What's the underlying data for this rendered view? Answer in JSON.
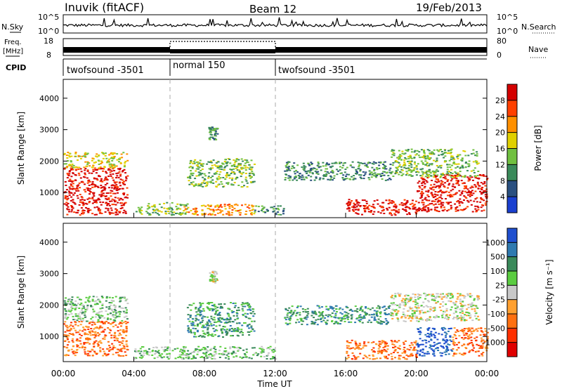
{
  "header": {
    "title": "Inuvik (fitACF)",
    "beam": "Beam 12",
    "date": "19/Feb/2013"
  },
  "nsky_panel": {
    "left_label": "N.Sky",
    "right_label": "N.Search",
    "ticks_left": [
      "10^5",
      "10^0"
    ],
    "ticks_right": [
      "10^5",
      "10^0"
    ]
  },
  "freq_panel": {
    "left_label_line1": "Freq.",
    "left_label_line2": "[MHz]",
    "right_label": "Nave",
    "ticks_left": [
      "18",
      "8"
    ],
    "ticks_right": [
      "80",
      "0"
    ]
  },
  "cpid_panel": {
    "label": "CPID",
    "segments": [
      {
        "name": "twofsound -3501",
        "start_h": 0,
        "end_h": 6
      },
      {
        "name": "normal 150",
        "start_h": 6,
        "end_h": 12
      },
      {
        "name": "twofsound -3501",
        "start_h": 12,
        "end_h": 24
      }
    ]
  },
  "chart_data": [
    {
      "type": "heatmap",
      "panel": "power",
      "xlabel": "Time UT",
      "ylabel": "Slant Range [km]",
      "xlim": [
        0,
        24
      ],
      "ylim": [
        200,
        4600
      ],
      "yticks": [
        "1000",
        "2000",
        "3000",
        "4000"
      ],
      "colorbar": {
        "label": "Power [dB]",
        "ticks": [
          "28",
          "24",
          "20",
          "16",
          "12",
          "8",
          "4"
        ],
        "colors": [
          "#d40000",
          "#ff4000",
          "#ff9000",
          "#e0d000",
          "#70c040",
          "#3a8a5a",
          "#2a5080",
          "#1a40d0"
        ]
      },
      "regions": [
        {
          "t0": 0.0,
          "t1": 3.6,
          "r0": 300,
          "r1": 1800,
          "level": 0
        },
        {
          "t0": 0.0,
          "t1": 3.6,
          "r0": 1800,
          "r1": 2300,
          "level": 3
        },
        {
          "t0": 4.0,
          "t1": 7.0,
          "r0": 300,
          "r1": 700,
          "level": 4
        },
        {
          "t0": 6.8,
          "t1": 10.8,
          "r0": 300,
          "r1": 650,
          "level": 2
        },
        {
          "t0": 7.0,
          "t1": 10.8,
          "r0": 1200,
          "r1": 2100,
          "level": 4
        },
        {
          "t0": 8.2,
          "t1": 8.7,
          "r0": 2700,
          "r1": 3100,
          "level": 5
        },
        {
          "t0": 10.8,
          "t1": 12.5,
          "r0": 300,
          "r1": 600,
          "level": 5
        },
        {
          "t0": 12.5,
          "t1": 18.5,
          "r0": 1400,
          "r1": 2000,
          "level": 5
        },
        {
          "t0": 16.0,
          "t1": 20.0,
          "r0": 300,
          "r1": 800,
          "level": 0
        },
        {
          "t0": 20.0,
          "t1": 24.0,
          "r0": 400,
          "r1": 1600,
          "level": 0
        },
        {
          "t0": 18.5,
          "t1": 23.5,
          "r0": 1500,
          "r1": 2400,
          "level": 4
        }
      ]
    },
    {
      "type": "heatmap",
      "panel": "velocity",
      "xlabel": "Time UT",
      "ylabel": "Slant Range [km]",
      "xlim": [
        0,
        24
      ],
      "ylim": [
        200,
        4600
      ],
      "yticks": [
        "1000",
        "2000",
        "3000",
        "4000"
      ],
      "xticks": [
        "00:00",
        "04:00",
        "08:00",
        "12:00",
        "16:00",
        "20:00",
        "00:00"
      ],
      "colorbar": {
        "label": "Velocity [m s⁻¹]",
        "ticks": [
          "1000",
          "500",
          "100",
          "25",
          "-25",
          "-100",
          "-500",
          "-1000"
        ],
        "colors": [
          "#1f4fcf",
          "#2f7ab0",
          "#3a8a5a",
          "#5acc40",
          "#c8c8c8",
          "#ffa030",
          "#ff7010",
          "#ff3000",
          "#e00000"
        ]
      },
      "regions": [
        {
          "t0": 0.0,
          "t1": 3.6,
          "r0": 400,
          "r1": 1500,
          "level": 6
        },
        {
          "t0": 0.0,
          "t1": 3.6,
          "r0": 1500,
          "r1": 2300,
          "level": 3
        },
        {
          "t0": 4.0,
          "t1": 7.0,
          "r0": 300,
          "r1": 700,
          "level": 3
        },
        {
          "t0": 7.0,
          "t1": 10.8,
          "r0": 1000,
          "r1": 2100,
          "level": 2
        },
        {
          "t0": 6.8,
          "t1": 12.0,
          "r0": 300,
          "r1": 700,
          "level": 3
        },
        {
          "t0": 8.2,
          "t1": 8.7,
          "r0": 2700,
          "r1": 3100,
          "level": 4
        },
        {
          "t0": 12.5,
          "t1": 18.5,
          "r0": 1400,
          "r1": 2000,
          "level": 2
        },
        {
          "t0": 16.0,
          "t1": 20.0,
          "r0": 300,
          "r1": 900,
          "level": 6
        },
        {
          "t0": 20.0,
          "t1": 22.0,
          "r0": 400,
          "r1": 1300,
          "level": 0
        },
        {
          "t0": 22.0,
          "t1": 24.0,
          "r0": 400,
          "r1": 1300,
          "level": 6
        },
        {
          "t0": 18.5,
          "t1": 23.5,
          "r0": 1500,
          "r1": 2400,
          "level": 4
        }
      ]
    }
  ]
}
